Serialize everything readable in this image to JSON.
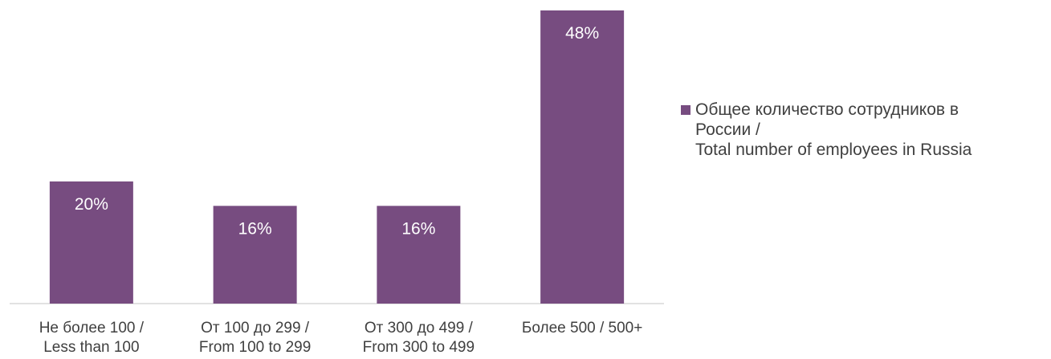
{
  "chart_data": {
    "type": "bar",
    "categories": [
      [
        "Не более 100 /",
        "Less than 100"
      ],
      [
        "От 100 до 299 /",
        "From 100 to 299"
      ],
      [
        "От 300 до 499 /",
        "From 300 to 499"
      ],
      [
        "Более 500 / 500+"
      ]
    ],
    "series": [
      {
        "name": "Общее количество сотрудников в\nРоссии /\nTotal number of employees in Russia",
        "values": [
          20,
          16,
          16,
          48
        ],
        "labels": [
          "20%",
          "16%",
          "16%",
          "48%"
        ],
        "color": "#774C80"
      }
    ],
    "ylim": [
      0,
      48
    ],
    "grid": false,
    "legend_position": "right"
  }
}
